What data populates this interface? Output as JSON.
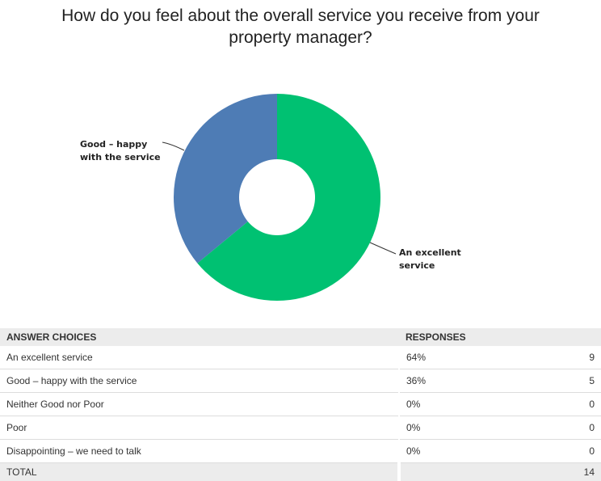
{
  "chart_data": {
    "type": "pie",
    "title": "How do you feel about the overall service you receive from your property manager?",
    "slices": [
      {
        "label": "An excellent service",
        "display_label": "An excellent service",
        "value": 64,
        "color": "#00c172"
      },
      {
        "label": "Good – happy with the service",
        "display_label": "Good – happy with the service",
        "value": 36,
        "color": "#4e7cb5"
      }
    ]
  },
  "table": {
    "headers": [
      "ANSWER CHOICES",
      "RESPONSES",
      ""
    ],
    "rows": [
      {
        "choice": "An excellent service",
        "percent": "64%",
        "count": "9"
      },
      {
        "choice": "Good –  happy with the service",
        "percent": "36%",
        "count": "5"
      },
      {
        "choice": "Neither Good nor Poor",
        "percent": "0%",
        "count": "0"
      },
      {
        "choice": "Poor",
        "percent": "0%",
        "count": "0"
      },
      {
        "choice": "Disappointing – we need to talk",
        "percent": "0%",
        "count": "0"
      }
    ],
    "total": {
      "label": "TOTAL",
      "count": "14"
    }
  }
}
